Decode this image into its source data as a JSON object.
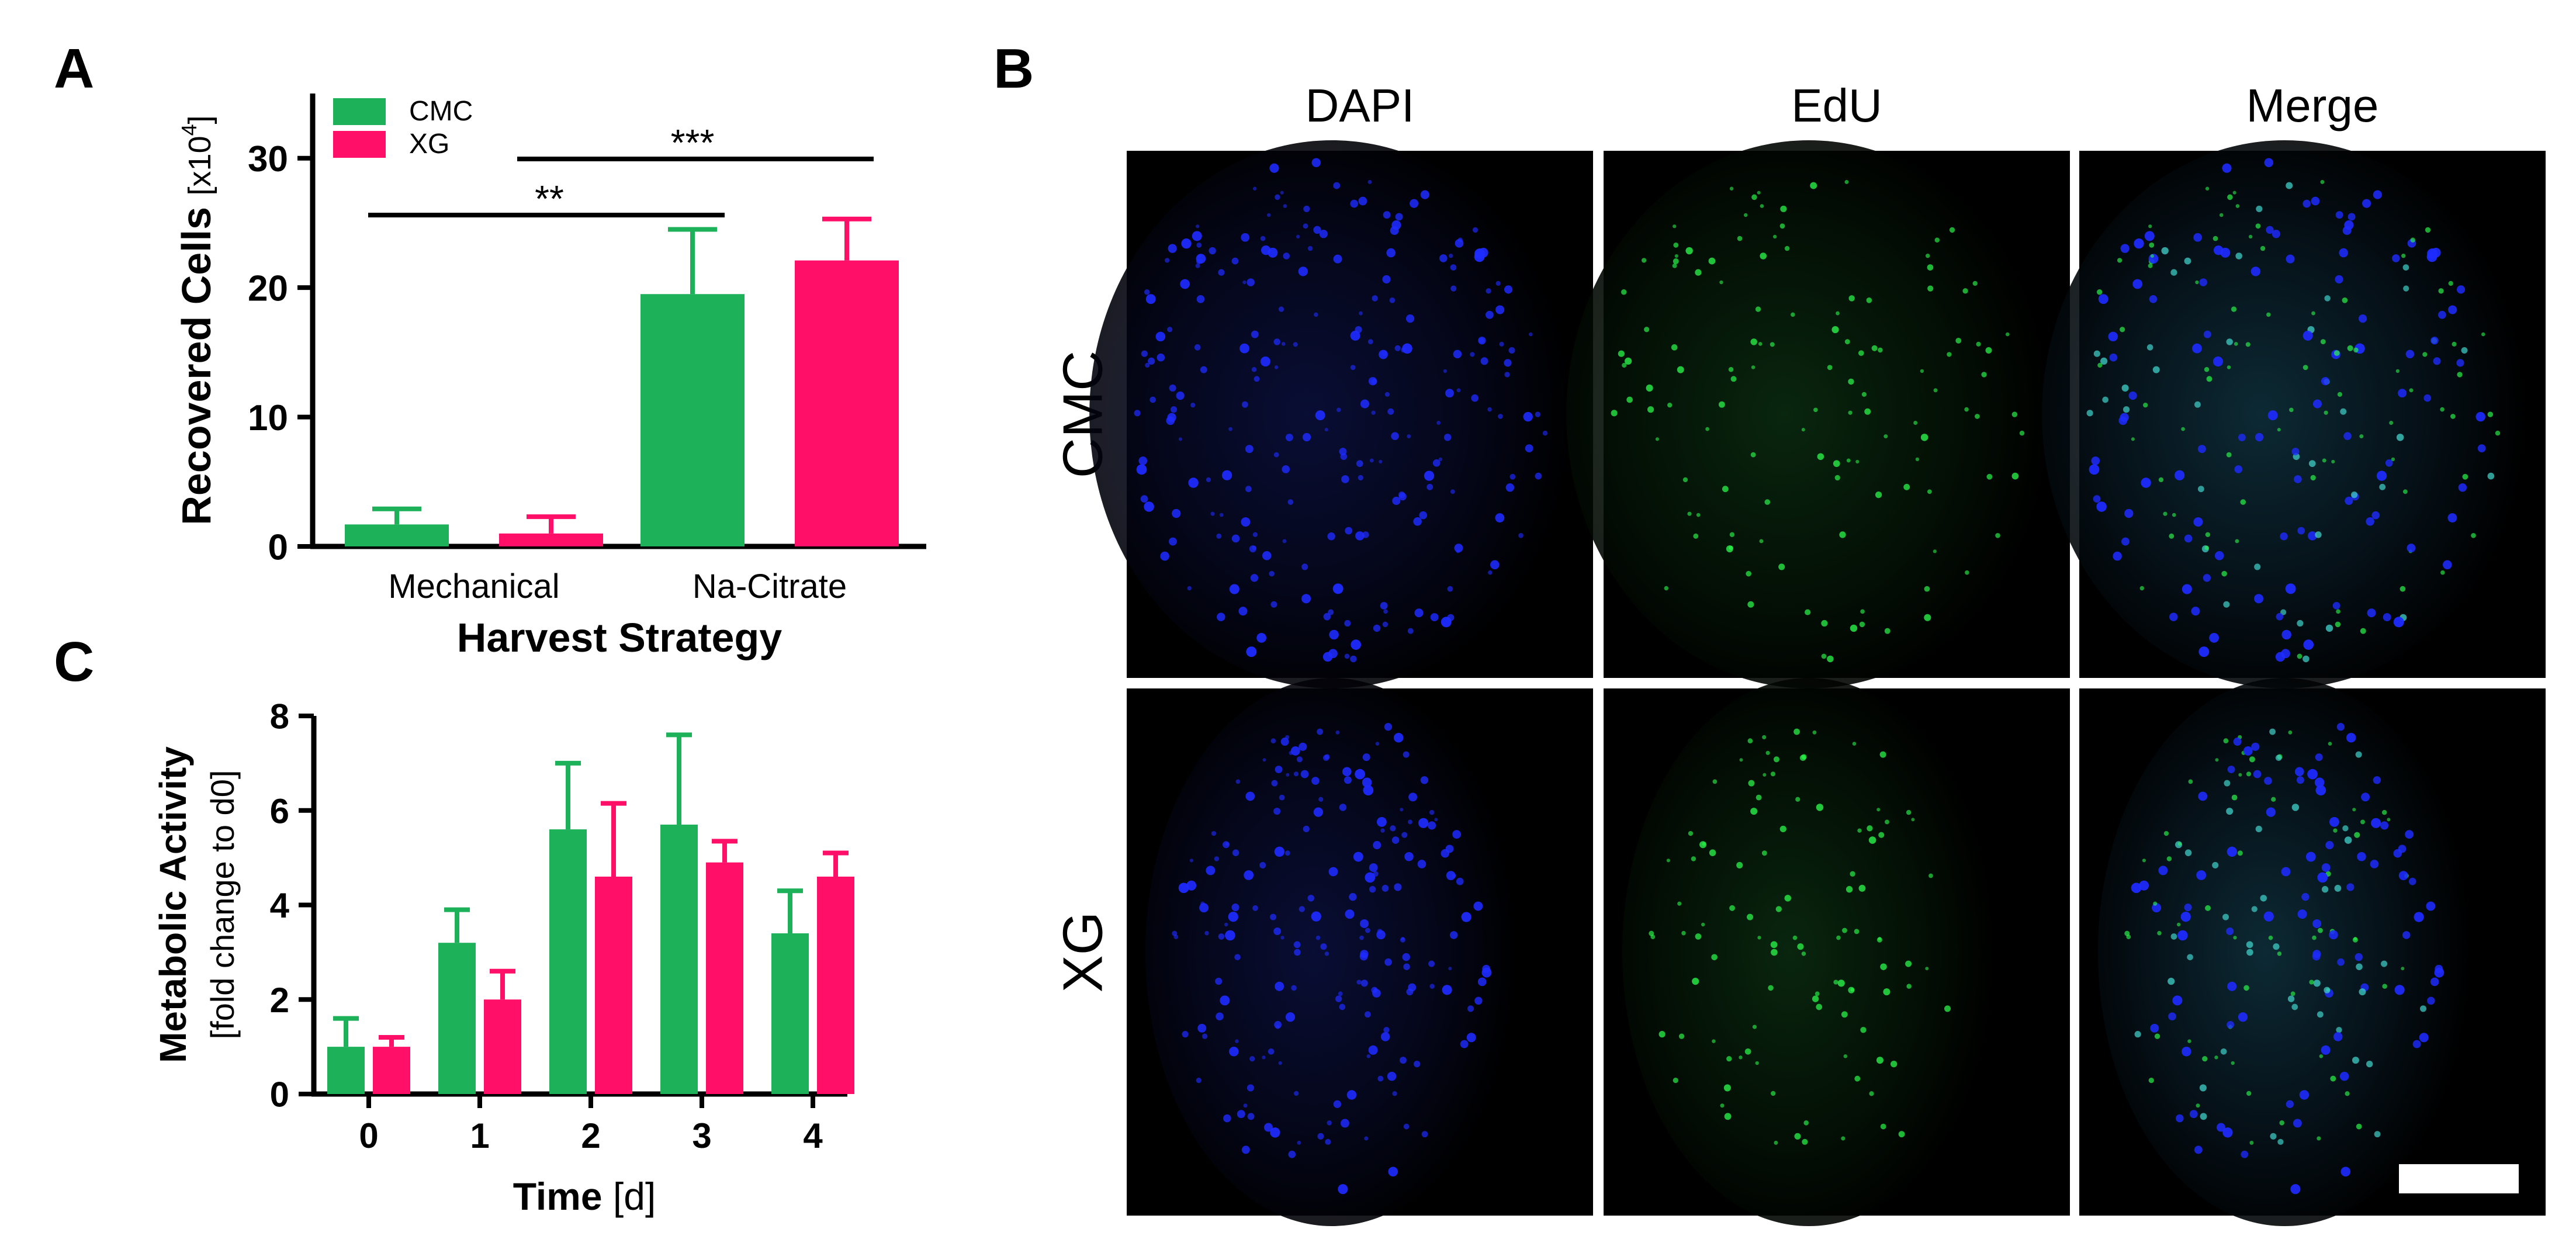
{
  "panel_letters": {
    "a": "A",
    "b": "B",
    "c": "C"
  },
  "colors": {
    "cmc": "#1db15a",
    "xg": "#ff0f67",
    "axis": "#000000",
    "dapi": "#1e2bff",
    "edu": "#2bff4c",
    "merge_teal": "#3fd0c8"
  },
  "chart_data": [
    {
      "type": "bar",
      "panel": "A",
      "categories": [
        "Mechanical",
        "Na-Citrate"
      ],
      "series": [
        {
          "name": "CMC",
          "values": [
            1.7,
            19.5
          ],
          "errors": [
            1.2,
            5.0
          ]
        },
        {
          "name": "XG",
          "values": [
            1.0,
            22.1
          ],
          "errors": [
            1.3,
            3.2
          ]
        }
      ],
      "xlabel": "Harvest Strategy",
      "ylabel_main": "Recovered Cells",
      "ylabel_unit_prefix": "[x10",
      "ylabel_unit_exp": "4",
      "ylabel_unit_suffix": "]",
      "ylim": [
        0,
        35
      ],
      "yticks": [
        "0",
        "10",
        "20",
        "30"
      ],
      "legend_position": "top-left",
      "significance": [
        {
          "label": "**",
          "from": "CMC Mechanical",
          "to": "CMC Na-Citrate"
        },
        {
          "label": "***",
          "from": "XG Mechanical",
          "to": "XG Na-Citrate"
        }
      ]
    },
    {
      "type": "bar",
      "panel": "C",
      "categories": [
        "0",
        "1",
        "2",
        "3",
        "4"
      ],
      "series": [
        {
          "name": "CMC",
          "values": [
            1.0,
            3.2,
            5.6,
            5.7,
            3.4
          ],
          "errors": [
            0.6,
            0.7,
            1.4,
            1.9,
            0.9
          ]
        },
        {
          "name": "XG",
          "values": [
            1.0,
            2.0,
            4.6,
            4.9,
            4.6
          ],
          "errors": [
            0.2,
            0.6,
            1.55,
            0.45,
            0.5
          ]
        }
      ],
      "xlabel_main": "Time",
      "xlabel_unit": "[d]",
      "ylabel_main": "Metabolic Activity",
      "ylabel_unit": "[fold change to d0]",
      "ylim": [
        0,
        8
      ],
      "yticks": [
        "0",
        "2",
        "4",
        "6",
        "8"
      ]
    }
  ],
  "microscopy": {
    "columns": [
      "DAPI",
      "EdU",
      "Merge"
    ],
    "rows": [
      "CMC",
      "XG"
    ]
  }
}
